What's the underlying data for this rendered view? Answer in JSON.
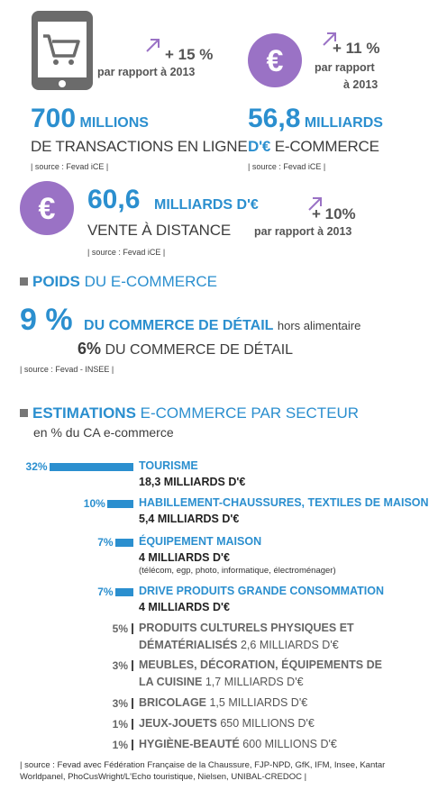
{
  "stats": [
    {
      "id": "transactions",
      "icon": "shopping-cart-tablet-icon",
      "value": "700",
      "unit": "MILLIONS",
      "desc": "DE TRANSACTIONS EN LIGNE",
      "source": "| source : Fevad iCE |",
      "growth": "+ 15 %",
      "growth_ref": "par rapport à 2013"
    },
    {
      "id": "ecommerce",
      "icon": "euro-icon",
      "value": "56,8",
      "unit": "MILLIARDS",
      "desc_bold": "D'€",
      "desc": "E-COMMERCE",
      "source": "| source : Fevad iCE |",
      "growth": "+ 11 %",
      "growth_ref_1": "par rapport",
      "growth_ref_2": "à 2013"
    },
    {
      "id": "vad",
      "icon": "euro-icon",
      "value": "60,6",
      "unit": "MILLIARDS D'€",
      "desc": "VENTE À DISTANCE",
      "source": "| source : Fevad iCE |",
      "growth": "+ 10%",
      "growth_ref": "par rapport à 2013"
    }
  ],
  "poids": {
    "title_bold": "POIDS",
    "title_thin": "DU E-COMMERCE",
    "line1_big": "9 %",
    "line1_bold": "DU COMMERCE DE DÉTAIL",
    "line1_rest": "hors alimentaire",
    "line2_big": "6%",
    "line2_rest": "DU COMMERCE DE DÉTAIL",
    "source": "| source : Fevad - INSEE |"
  },
  "estimations": {
    "title_bold": "ESTIMATIONS",
    "title_thin": "E-COMMERCE PAR SECTEUR",
    "subtitle": "en % du CA e-commerce"
  },
  "chart_data": {
    "type": "bar",
    "title": "ESTIMATIONS E-COMMERCE PAR SECTEUR",
    "subtitle": "en % du CA e-commerce",
    "categories": [
      "TOURISME",
      "HABILLEMENT-CHAUSSURES, TEXTILES DE MAISON",
      "ÉQUIPEMENT MAISON",
      "DRIVE PRODUITS GRANDE CONSOMMATION",
      "PRODUITS CULTURELS PHYSIQUES ET DÉMATÉRIALISÉS",
      "MEUBLES, DÉCORATION, ÉQUIPEMENTS DE LA CUISINE",
      "BRICOLAGE",
      "JEUX-JOUETS",
      "HYGIÈNE-BEAUTÉ"
    ],
    "values": [
      32,
      10,
      7,
      7,
      5,
      3,
      3,
      1,
      1
    ],
    "labels": [
      "32%",
      "10%",
      "7%",
      "7%",
      "5%",
      "3%",
      "3%",
      "1%",
      "1%"
    ],
    "amounts": [
      "18,3 MILLIARDS D'€",
      "5,4 MILLIARDS D'€",
      "4 MILLIARDS D'€",
      "4 MILLIARDS D'€",
      "2,6 MILLIARDS D'€",
      "1,7 MILLIARDS D'€",
      "1,5 MILLIARDS D'€",
      "650 MILLIONS D'€",
      "600 MILLIONS D'€"
    ],
    "note_equipement": "(télécom, egp, photo, informatique, électroménager)",
    "colors": {
      "bar": "#2b8fcf",
      "highlight": "#2b8fcf",
      "muted": "#666666"
    }
  },
  "footer_source": "| source : Fevad avec Fédération Française de la Chaussure, FJP-NPD, GfK, IFM, Insee, Kantar Worldpanel, PhoCusWright/L'Echo touristique, Nielsen, UNIBAL-CREDOC |"
}
